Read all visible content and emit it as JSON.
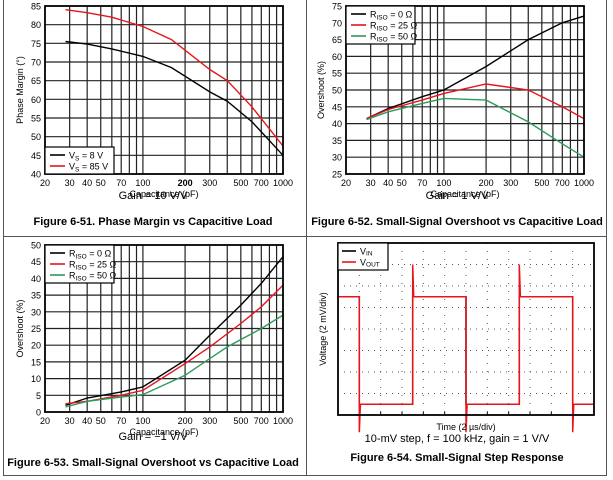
{
  "chart_data": [
    {
      "id": "fig651",
      "type": "line",
      "title": "Figure 6-51. Phase Margin vs Capacitive Load",
      "condition": "Gain = 10 V/V",
      "xlabel": "Capacitance (pF)",
      "ylabel": "Phase Margin (°)",
      "xscale": "log",
      "xlim": [
        20,
        1000
      ],
      "ylim": [
        40,
        85
      ],
      "xticks": [
        20,
        30,
        40,
        50,
        70,
        100,
        200,
        300,
        500,
        700,
        1000
      ],
      "yticks": [
        40,
        45,
        50,
        55,
        60,
        65,
        70,
        75,
        80,
        85
      ],
      "grid": true,
      "legend_position": "bottom-left",
      "series": [
        {
          "name": "VS = 8 V",
          "label_main": "V",
          "label_sub": "S",
          "label_rest": " = 8 V",
          "color": "#000000",
          "x": [
            28,
            40,
            60,
            100,
            160,
            300,
            400,
            600,
            1000
          ],
          "y": [
            75.5,
            74.8,
            73.5,
            71.5,
            68.5,
            62,
            59.5,
            54,
            45
          ]
        },
        {
          "name": "VS = 85 V",
          "label_main": "V",
          "label_sub": "S",
          "label_rest": " = 85 V",
          "color": "#e8141c",
          "x": [
            28,
            40,
            60,
            100,
            160,
            300,
            400,
            600,
            1000
          ],
          "y": [
            84,
            83.2,
            82,
            79.5,
            76,
            68,
            65,
            58,
            47.5
          ]
        }
      ]
    },
    {
      "id": "fig652",
      "type": "line",
      "title": "Figure 6-52. Small-Signal Overshoot vs Capacitive Load",
      "condition": "Gain = 1 V/V",
      "xlabel": "Capacitance (pF)",
      "ylabel": "Overshoot (%)",
      "xscale": "log",
      "xlim": [
        20,
        1000
      ],
      "ylim": [
        25,
        75
      ],
      "xticks": [
        20,
        30,
        40,
        50,
        70,
        100,
        200,
        300,
        500,
        700,
        1000
      ],
      "yticks": [
        25,
        30,
        35,
        40,
        45,
        50,
        55,
        60,
        65,
        70,
        75
      ],
      "grid": true,
      "legend_position": "top-left",
      "series": [
        {
          "name": "RISO = 0 Ω",
          "label_main": "R",
          "label_sub": "ISO",
          "label_rest": " = 0 Ω",
          "color": "#000000",
          "x": [
            28,
            40,
            70,
            100,
            200,
            400,
            700,
            1000
          ],
          "y": [
            41.5,
            44.5,
            48,
            50,
            57,
            65,
            70,
            72
          ]
        },
        {
          "name": "RISO = 25 Ω",
          "label_main": "R",
          "label_sub": "ISO",
          "label_rest": " = 25 Ω",
          "color": "#e8141c",
          "x": [
            28,
            40,
            70,
            100,
            200,
            400,
            700,
            1000
          ],
          "y": [
            41.5,
            44.2,
            47,
            49,
            51.8,
            50,
            45,
            41.5
          ]
        },
        {
          "name": "RISO = 50 Ω",
          "label_main": "R",
          "label_sub": "ISO",
          "label_rest": " = 50 Ω",
          "color": "#2e9a5a",
          "x": [
            28,
            40,
            70,
            100,
            200,
            400,
            700,
            1000
          ],
          "y": [
            41.2,
            43.5,
            46,
            47.5,
            47,
            40.5,
            34,
            30
          ]
        }
      ]
    },
    {
      "id": "fig653",
      "type": "line",
      "title": "Figure 6-53. Small-Signal Overshoot vs Capacitive Load",
      "condition": "Gain = −1 V/V",
      "xlabel": "Capacitance (pF)",
      "ylabel": "Overshoot (%)",
      "xscale": "log",
      "xlim": [
        20,
        1000
      ],
      "ylim": [
        0,
        50
      ],
      "xticks": [
        20,
        30,
        40,
        50,
        70,
        100,
        200,
        300,
        500,
        700,
        1000
      ],
      "yticks": [
        0,
        5,
        10,
        15,
        20,
        25,
        30,
        35,
        40,
        45,
        50
      ],
      "grid": true,
      "legend_position": "top-left",
      "series": [
        {
          "name": "RISO = 0 Ω",
          "label_main": "R",
          "label_sub": "ISO",
          "label_rest": " = 0 Ω",
          "color": "#000000",
          "x": [
            28,
            40,
            70,
            100,
            200,
            300,
            500,
            700,
            1000
          ],
          "y": [
            2,
            4.2,
            6,
            7.5,
            15.5,
            23,
            32,
            38.5,
            46.5
          ]
        },
        {
          "name": "RISO = 25 Ω",
          "label_main": "R",
          "label_sub": "ISO",
          "label_rest": " = 25 Ω",
          "color": "#e8141c",
          "x": [
            28,
            40,
            70,
            100,
            200,
            300,
            500,
            700,
            1000
          ],
          "y": [
            2.5,
            3.2,
            5,
            6.5,
            14.5,
            19.5,
            26.5,
            31.5,
            38
          ]
        },
        {
          "name": "RISO = 50 Ω",
          "label_main": "R",
          "label_sub": "ISO",
          "label_rest": " = 50 Ω",
          "color": "#2e9a5a",
          "x": [
            28,
            40,
            70,
            100,
            200,
            300,
            400,
            700,
            1000
          ],
          "y": [
            1.5,
            3.2,
            4.5,
            5.2,
            11,
            16,
            19.5,
            25,
            29
          ]
        }
      ]
    },
    {
      "id": "fig654",
      "type": "line",
      "title": "Figure 6-54. Small-Signal Step Response",
      "condition": "10-mV step, f = 100 kHz, gain = 1 V/V",
      "xlabel": "Time (2 µs/div)",
      "ylabel": "Voltage (2 mV/div)",
      "x_divisions": 12,
      "y_divisions": 8,
      "grid": "dotted",
      "legend_position": "top-left",
      "series": [
        {
          "name": "VIN",
          "label_main": "V",
          "label_sub": "IN",
          "label_rest": "",
          "color": "#000000",
          "t_div": [
            0,
            1,
            1,
            3.5,
            3.5,
            6,
            6,
            8.5,
            8.5,
            11,
            11,
            12
          ],
          "v_div": [
            5.5,
            5.5,
            0.5,
            0.5,
            5.5,
            5.5,
            0.5,
            0.5,
            5.5,
            5.5,
            0.5,
            0.5
          ]
        },
        {
          "name": "VOUT",
          "label_main": "V",
          "label_sub": "OUT",
          "label_rest": "",
          "color": "#e8141c",
          "t_div": [
            0,
            1,
            1,
            1.05,
            1.05,
            3.5,
            3.5,
            3.55,
            3.55,
            6,
            6,
            6.05,
            6.05,
            8.5,
            8.5,
            8.55,
            8.55,
            11,
            11,
            11.05,
            11.05,
            12
          ],
          "v_div": [
            5.5,
            5.5,
            -0.8,
            0.5,
            0.5,
            0.5,
            7.0,
            5.5,
            5.5,
            5.5,
            -0.8,
            0.5,
            0.5,
            0.5,
            7.0,
            5.5,
            5.5,
            5.5,
            -0.8,
            0.5,
            0.5,
            0.5
          ]
        }
      ]
    }
  ]
}
